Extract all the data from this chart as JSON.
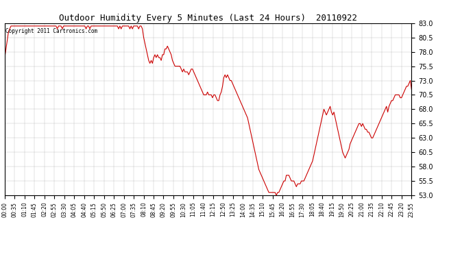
{
  "title": "Outdoor Humidity Every 5 Minutes (Last 24 Hours)  20110922",
  "copyright_text": "Copyright 2011 Cartronics.com",
  "line_color": "#cc0000",
  "background_color": "#ffffff",
  "plot_bg_color": "#ffffff",
  "grid_color": "#aaaaaa",
  "ylim": [
    53.0,
    83.0
  ],
  "yticks": [
    53.0,
    55.5,
    58.0,
    60.5,
    63.0,
    65.5,
    68.0,
    70.5,
    73.0,
    75.5,
    78.0,
    80.5,
    83.0
  ],
  "xtick_labels": [
    "00:00",
    "00:35",
    "01:10",
    "01:45",
    "02:20",
    "02:55",
    "03:30",
    "04:05",
    "04:40",
    "05:15",
    "05:50",
    "06:25",
    "07:00",
    "07:35",
    "08:10",
    "08:45",
    "09:20",
    "09:55",
    "10:30",
    "11:05",
    "11:40",
    "12:15",
    "12:50",
    "13:25",
    "14:00",
    "14:35",
    "15:10",
    "15:45",
    "16:20",
    "16:55",
    "17:30",
    "18:05",
    "18:40",
    "19:15",
    "19:50",
    "20:25",
    "21:00",
    "21:35",
    "22:10",
    "22:45",
    "23:20",
    "23:55"
  ],
  "humidity_values": [
    77.0,
    78.5,
    80.0,
    81.5,
    82.0,
    82.5,
    82.5,
    82.5,
    82.5,
    82.5,
    82.5,
    82.5,
    82.5,
    82.5,
    82.5,
    82.5,
    82.5,
    82.5,
    82.5,
    82.5,
    82.5,
    82.5,
    82.5,
    82.5,
    82.5,
    82.5,
    82.5,
    82.5,
    82.5,
    82.5,
    82.5,
    82.5,
    82.5,
    82.5,
    82.5,
    82.5,
    82.5,
    82.5,
    82.5,
    82.5,
    82.5,
    82.5,
    82.0,
    82.5,
    82.5,
    82.5,
    82.0,
    82.5,
    82.5,
    82.5,
    82.5,
    82.5,
    82.5,
    82.5,
    82.5,
    82.5,
    82.5,
    82.5,
    82.5,
    82.5,
    82.5,
    82.5,
    82.5,
    82.5,
    82.5,
    82.0,
    82.5,
    82.5,
    82.0,
    82.5,
    82.5,
    82.5,
    82.5,
    82.5,
    82.5,
    82.5,
    82.5,
    82.5,
    82.5,
    82.5,
    82.5,
    82.5,
    82.5,
    82.5,
    82.5,
    82.5,
    82.5,
    82.5,
    82.5,
    82.5,
    82.5,
    82.0,
    82.5,
    82.0,
    82.5,
    82.5,
    82.5,
    82.5,
    82.5,
    82.5,
    82.0,
    82.5,
    82.0,
    82.5,
    82.5,
    82.5,
    82.5,
    82.0,
    82.5,
    82.5,
    82.0,
    80.5,
    79.5,
    78.5,
    77.5,
    76.5,
    76.0,
    76.5,
    76.0,
    77.0,
    77.5,
    77.0,
    77.5,
    77.0,
    77.0,
    76.5,
    77.5,
    77.5,
    78.5,
    78.5,
    79.0,
    78.5,
    78.0,
    77.5,
    76.5,
    76.0,
    75.5,
    75.5,
    75.5,
    75.5,
    75.5,
    75.0,
    74.5,
    75.0,
    74.5,
    74.5,
    74.5,
    74.0,
    74.5,
    75.0,
    75.0,
    74.5,
    74.0,
    73.5,
    73.0,
    72.5,
    72.0,
    71.5,
    71.0,
    70.5,
    70.5,
    70.5,
    71.0,
    70.5,
    70.5,
    70.5,
    70.0,
    70.5,
    70.5,
    70.0,
    69.5,
    69.5,
    70.5,
    71.0,
    72.0,
    73.5,
    74.0,
    73.5,
    74.0,
    73.5,
    73.0,
    73.0,
    72.5,
    72.0,
    71.5,
    71.0,
    70.5,
    70.0,
    69.5,
    69.0,
    68.5,
    68.0,
    67.5,
    67.0,
    66.5,
    65.5,
    64.5,
    63.5,
    62.5,
    61.5,
    60.5,
    59.5,
    58.5,
    57.5,
    57.0,
    56.5,
    56.0,
    55.5,
    55.0,
    54.5,
    54.0,
    53.5,
    53.5,
    53.5,
    53.5,
    53.5,
    53.5,
    53.0,
    53.5,
    53.5,
    54.0,
    54.5,
    55.0,
    55.5,
    55.5,
    56.5,
    56.5,
    56.5,
    56.0,
    55.5,
    55.5,
    55.5,
    55.0,
    54.5,
    55.0,
    55.0,
    55.0,
    55.5,
    55.5,
    55.5,
    56.0,
    56.5,
    57.0,
    57.5,
    58.0,
    58.5,
    59.0,
    60.0,
    61.0,
    62.0,
    63.0,
    64.0,
    65.0,
    66.0,
    67.0,
    68.0,
    67.5,
    67.0,
    67.5,
    68.0,
    68.5,
    67.5,
    67.0,
    67.5,
    66.5,
    65.5,
    64.5,
    63.5,
    62.5,
    61.5,
    60.5,
    60.0,
    59.5,
    60.0,
    60.5,
    61.0,
    62.0,
    62.5,
    63.0,
    63.5,
    64.0,
    64.5,
    65.0,
    65.5,
    65.5,
    65.0,
    65.5,
    65.0,
    64.5,
    64.5,
    64.0,
    64.0,
    63.5,
    63.0,
    63.0,
    63.5,
    64.0,
    64.5,
    65.0,
    65.5,
    66.0,
    66.5,
    67.0,
    67.5,
    68.0,
    68.5,
    67.5,
    68.5,
    69.0,
    69.5,
    69.5,
    70.0,
    70.5,
    70.5,
    70.5,
    70.5,
    70.0,
    70.0,
    70.5,
    71.0,
    71.5,
    72.0,
    72.0,
    72.5,
    73.0,
    71.5
  ]
}
